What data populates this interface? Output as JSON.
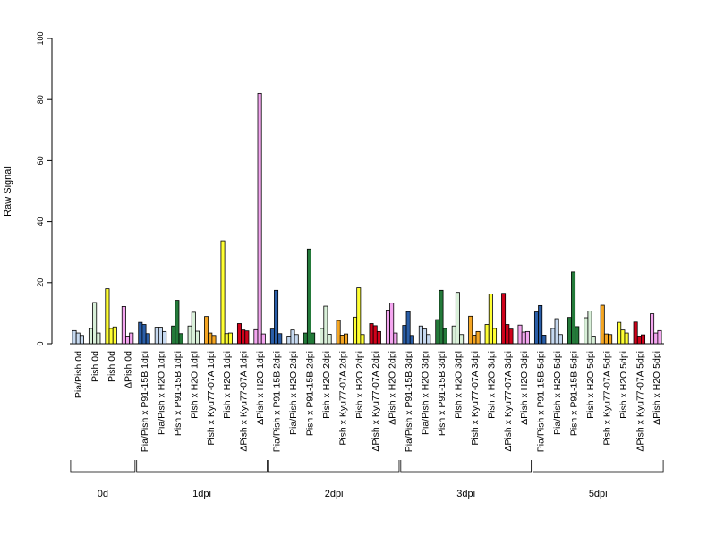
{
  "chart_data": {
    "type": "bar",
    "ylabel": "Raw Signal",
    "ylim": [
      0,
      100
    ],
    "yticks": [
      0,
      20,
      40,
      60,
      80,
      100
    ],
    "grid": false,
    "legend": "none",
    "group_colors": [
      "#2a5ea8",
      "#c6d9f0",
      "#247a3a",
      "#d9f0d9",
      "#f5a623",
      "#ffff33",
      "#d0021b",
      "#f4a6f0"
    ],
    "categories": [
      {
        "label": "Pia/Pish 0d",
        "values": [
          4.3,
          3.5,
          2.7
        ],
        "color": "#c6d9f0"
      },
      {
        "label": "Pish 0d",
        "values": [
          5.0,
          13.5,
          3.5
        ],
        "color": "#d9f0d9"
      },
      {
        "label": "Pish 0d",
        "values": [
          18.0,
          5.0,
          5.5
        ],
        "color": "#ffff33"
      },
      {
        "label": "ΔPish 0d",
        "values": [
          12.2,
          2.5,
          3.5
        ],
        "color": "#f4a6f0"
      },
      {
        "label": "Pia/Pish x P91-15B 1dpi",
        "values": [
          7.0,
          6.3,
          3.3
        ],
        "color": "#2a5ea8"
      },
      {
        "label": "Pia/Pish x H2O 1dpi",
        "values": [
          5.4,
          5.4,
          4.0
        ],
        "color": "#c6d9f0"
      },
      {
        "label": "Pish x P91-15B 1dpi",
        "values": [
          5.8,
          14.2,
          3.3
        ],
        "color": "#247a3a"
      },
      {
        "label": "Pish x H2O 1dpi",
        "values": [
          5.8,
          10.3,
          4.1
        ],
        "color": "#d9f0d9"
      },
      {
        "label": "Pish x Kyu77-07A 1dpi",
        "values": [
          8.9,
          3.5,
          2.7
        ],
        "color": "#f5a623"
      },
      {
        "label": "Pish x H2O 1dpi",
        "values": [
          33.7,
          3.3,
          3.5
        ],
        "color": "#ffff33"
      },
      {
        "label": "ΔPish x Kyu77-07A 1dpi",
        "values": [
          6.6,
          4.5,
          4.2
        ],
        "color": "#d0021b"
      },
      {
        "label": "ΔPish x H2O 1dpi",
        "values": [
          4.6,
          82.0,
          3.2
        ],
        "color": "#f4a6f0"
      },
      {
        "label": "Pia/Pish x P91-15B 2dpi",
        "values": [
          4.8,
          17.5,
          3.3
        ],
        "color": "#2a5ea8"
      },
      {
        "label": "Pia/Pish x H2O 2dpi",
        "values": [
          2.5,
          4.5,
          3.0
        ],
        "color": "#c6d9f0"
      },
      {
        "label": "Pish x P91-15B 2dpi",
        "values": [
          3.5,
          31.0,
          3.5
        ],
        "color": "#247a3a"
      },
      {
        "label": "Pish x H2O 2dpi",
        "values": [
          5.0,
          12.3,
          3.1
        ],
        "color": "#d9f0d9"
      },
      {
        "label": "Pish x Kyu77-07A 2dpi",
        "values": [
          7.6,
          2.8,
          3.2
        ],
        "color": "#f5a623"
      },
      {
        "label": "Pish x H2O 2dpi",
        "values": [
          8.7,
          18.3,
          3.0
        ],
        "color": "#ffff33"
      },
      {
        "label": "ΔPish x Kyu77-07A 2dpi",
        "values": [
          6.6,
          5.9,
          4.0
        ],
        "color": "#d0021b"
      },
      {
        "label": "ΔPish x H2O 2dpi",
        "values": [
          11.0,
          13.3,
          3.5
        ],
        "color": "#f4a6f0"
      },
      {
        "label": "Pia/Pish x P91-15B 3dpi",
        "values": [
          6.0,
          10.5,
          2.7
        ],
        "color": "#2a5ea8"
      },
      {
        "label": "Pia/Pish x H2O 3dpi",
        "values": [
          5.8,
          4.8,
          3.0
        ],
        "color": "#c6d9f0"
      },
      {
        "label": "Pish x P91-15B 3dpi",
        "values": [
          7.9,
          17.5,
          5.0
        ],
        "color": "#247a3a"
      },
      {
        "label": "Pish x H2O 3dpi",
        "values": [
          5.8,
          16.8,
          3.0
        ],
        "color": "#d9f0d9"
      },
      {
        "label": "Pish x Kyu77-07A 3dpi",
        "values": [
          9.0,
          2.8,
          4.0
        ],
        "color": "#f5a623"
      },
      {
        "label": "Pish x H2O 3dpi",
        "values": [
          6.3,
          16.3,
          5.0
        ],
        "color": "#ffff33"
      },
      {
        "label": "ΔPish x Kyu77-07A 3dpi",
        "values": [
          16.5,
          6.3,
          4.8
        ],
        "color": "#d0021b"
      },
      {
        "label": "ΔPish x H2O 3dpi",
        "values": [
          6.1,
          3.8,
          4.0
        ],
        "color": "#f4a6f0"
      },
      {
        "label": "Pia/Pish x P91-15B 5dpi",
        "values": [
          10.4,
          12.5,
          2.8
        ],
        "color": "#2a5ea8"
      },
      {
        "label": "Pia/Pish x H2O 5dpi",
        "values": [
          5.0,
          8.2,
          3.0
        ],
        "color": "#c6d9f0"
      },
      {
        "label": "Pish x P91-15B 5dpi",
        "values": [
          8.6,
          23.5,
          5.6
        ],
        "color": "#247a3a"
      },
      {
        "label": "Pish x H2O 5dpi",
        "values": [
          8.5,
          10.7,
          2.5
        ],
        "color": "#d9f0d9"
      },
      {
        "label": "Pish x Kyu77-07A 5dpi",
        "values": [
          12.6,
          3.2,
          3.0
        ],
        "color": "#f5a623"
      },
      {
        "label": "Pish x H2O 5dpi",
        "values": [
          7.0,
          4.5,
          3.5
        ],
        "color": "#ffff33"
      },
      {
        "label": "ΔPish x Kyu77-07A 5dpi",
        "values": [
          7.1,
          2.5,
          2.9
        ],
        "color": "#d0021b"
      },
      {
        "label": "ΔPish x H2O 5dpi",
        "values": [
          9.8,
          3.5,
          4.3
        ],
        "color": "#f4a6f0"
      }
    ],
    "groups": [
      {
        "label": "0d",
        "start": 0,
        "end": 3
      },
      {
        "label": "1dpi",
        "start": 4,
        "end": 11
      },
      {
        "label": "2dpi",
        "start": 12,
        "end": 19
      },
      {
        "label": "3dpi",
        "start": 20,
        "end": 27
      },
      {
        "label": "5dpi",
        "start": 28,
        "end": 35
      }
    ]
  }
}
